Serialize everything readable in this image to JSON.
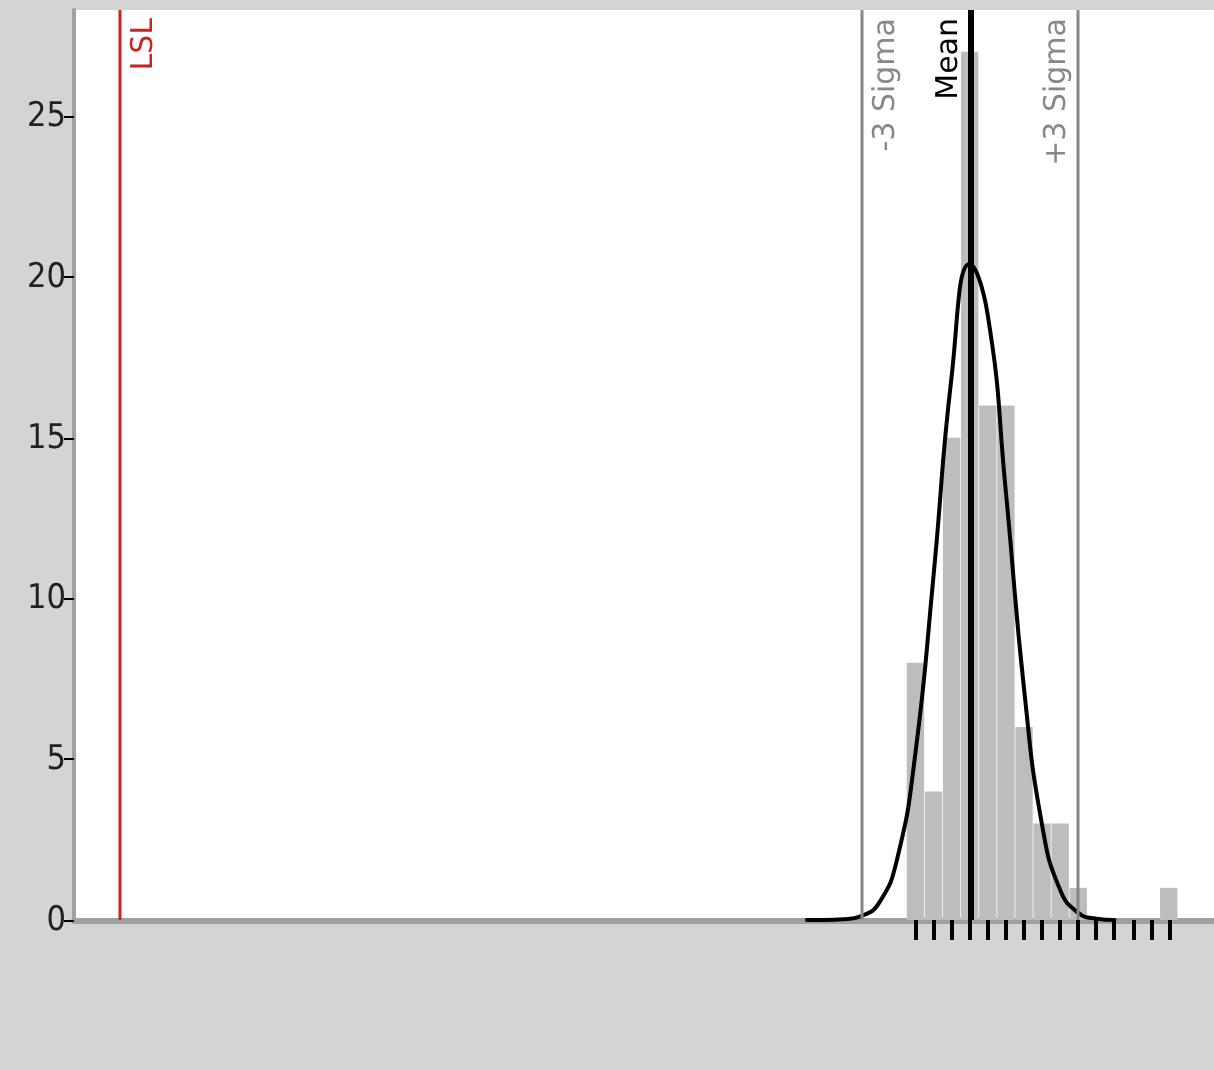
{
  "chart_data": {
    "type": "bar",
    "categories": [
      null,
      null,
      null,
      null,
      null,
      null,
      null,
      null,
      null,
      null,
      null,
      null,
      null,
      null,
      null,
      null,
      null,
      null,
      null,
      null,
      null,
      null,
      null,
      null,
      null,
      null,
      null,
      null,
      null,
      null,
      null,
      null,
      null,
      null,
      null,
      null,
      null,
      null,
      null,
      null,
      null,
      null,
      null,
      null,
      null,
      null,
      null,
      null,
      null,
      null,
      null,
      null,
      null,
      null,
      null,
      null,
      null,
      null,
      null,
      null,
      null,
      null,
      null
    ],
    "series": [
      {
        "color": "#bdbdbd",
        "values": [
          null,
          null,
          null,
          null,
          null,
          null,
          null,
          null,
          null,
          null,
          null,
          null,
          null,
          null,
          null,
          null,
          null,
          null,
          null,
          null,
          null,
          null,
          null,
          null,
          null,
          null,
          null,
          null,
          null,
          null,
          null,
          null,
          null,
          null,
          null,
          null,
          null,
          null,
          null,
          null,
          null,
          null,
          null,
          null,
          null,
          null,
          8,
          4,
          15,
          27,
          16,
          16,
          6,
          3,
          3,
          1,
          0,
          0,
          0,
          0,
          1,
          null,
          null
        ]
      },
      {
        "type": "line",
        "color": "#000000",
        "values": [
          null,
          null,
          null,
          null,
          null,
          null,
          null,
          null,
          null,
          null,
          null,
          null,
          null,
          null,
          null,
          null,
          null,
          null,
          null,
          null,
          null,
          null,
          null,
          null,
          null,
          null,
          null,
          null,
          null,
          null,
          null,
          null,
          null,
          null,
          null,
          null,
          null,
          null,
          null,
          null,
          0,
          0,
          0.02,
          0.12,
          0.54,
          1.92,
          5.19,
          10.7,
          16.9,
          20.4,
          18.8,
          13.3,
          7.2,
          2.95,
          0.93,
          0.22,
          0.04,
          0,
          null,
          null,
          null,
          null,
          null
        ]
      }
    ],
    "ylim": [
      0,
      28.3
    ],
    "yticks": [
      0,
      5,
      10,
      15,
      20,
      25
    ],
    "grid": false,
    "marker": "none",
    "line_style": "solid",
    "tick_labels": "y",
    "annotations": [
      "LSL",
      "-3 Sigma",
      "Mean",
      "+3 Sigma"
    ]
  }
}
